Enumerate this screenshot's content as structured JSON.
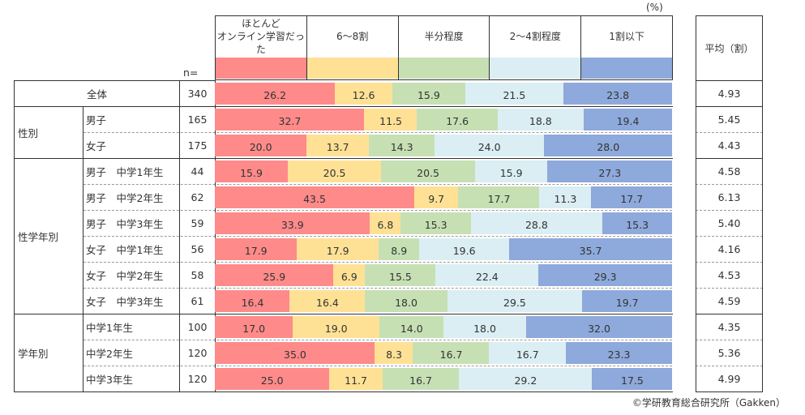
{
  "chart_data": {
    "type": "bar",
    "stacked": true,
    "orientation": "horizontal",
    "unit": "(%)",
    "n_label": "n=",
    "avg_header": "平均（割）",
    "series": [
      {
        "name": "ほとんど\nオンライン学習だった",
        "color": "#FF8A8A"
      },
      {
        "name": "6〜8割",
        "color": "#FFE195"
      },
      {
        "name": "半分程度",
        "color": "#C6E0B4"
      },
      {
        "name": "2〜4割程度",
        "color": "#DAEEF3"
      },
      {
        "name": "1割以下",
        "color": "#8EA9DB"
      }
    ],
    "groups": [
      {
        "label": "",
        "rows": [
          {
            "label": "全体",
            "n": "340",
            "values": [
              26.2,
              12.6,
              15.9,
              21.5,
              23.8
            ],
            "avg": "4.93"
          }
        ]
      },
      {
        "label": "性別",
        "rows": [
          {
            "label": "男子",
            "n": "165",
            "values": [
              32.7,
              11.5,
              17.6,
              18.8,
              19.4
            ],
            "avg": "5.45"
          },
          {
            "label": "女子",
            "n": "175",
            "values": [
              20.0,
              13.7,
              14.3,
              24.0,
              28.0
            ],
            "avg": "4.43"
          }
        ]
      },
      {
        "label": "性学年別",
        "rows": [
          {
            "label": "男子　中学1年生",
            "n": "44",
            "values": [
              15.9,
              20.5,
              20.5,
              15.9,
              27.3
            ],
            "avg": "4.58"
          },
          {
            "label": "男子　中学2年生",
            "n": "62",
            "values": [
              43.5,
              9.7,
              17.7,
              11.3,
              17.7
            ],
            "avg": "6.13"
          },
          {
            "label": "男子　中学3年生",
            "n": "59",
            "values": [
              33.9,
              6.8,
              15.3,
              28.8,
              15.3
            ],
            "avg": "5.40"
          },
          {
            "label": "女子　中学1年生",
            "n": "56",
            "values": [
              17.9,
              17.9,
              8.9,
              19.6,
              35.7
            ],
            "avg": "4.16"
          },
          {
            "label": "女子　中学2年生",
            "n": "58",
            "values": [
              25.9,
              6.9,
              15.5,
              22.4,
              29.3
            ],
            "avg": "4.53"
          },
          {
            "label": "女子　中学3年生",
            "n": "61",
            "values": [
              16.4,
              16.4,
              18.0,
              29.5,
              19.7
            ],
            "avg": "4.59"
          }
        ]
      },
      {
        "label": "学年別",
        "rows": [
          {
            "label": "中学1年生",
            "n": "100",
            "values": [
              17.0,
              19.0,
              14.0,
              18.0,
              32.0
            ],
            "avg": "4.35"
          },
          {
            "label": "中学2年生",
            "n": "120",
            "values": [
              35.0,
              8.3,
              16.7,
              16.7,
              23.3
            ],
            "avg": "5.36"
          },
          {
            "label": "中学3年生",
            "n": "120",
            "values": [
              25.0,
              11.7,
              16.7,
              29.2,
              17.5
            ],
            "avg": "4.99"
          }
        ]
      }
    ]
  },
  "footer": {
    "credit": "©学研教育総合研究所（Gakken）"
  }
}
